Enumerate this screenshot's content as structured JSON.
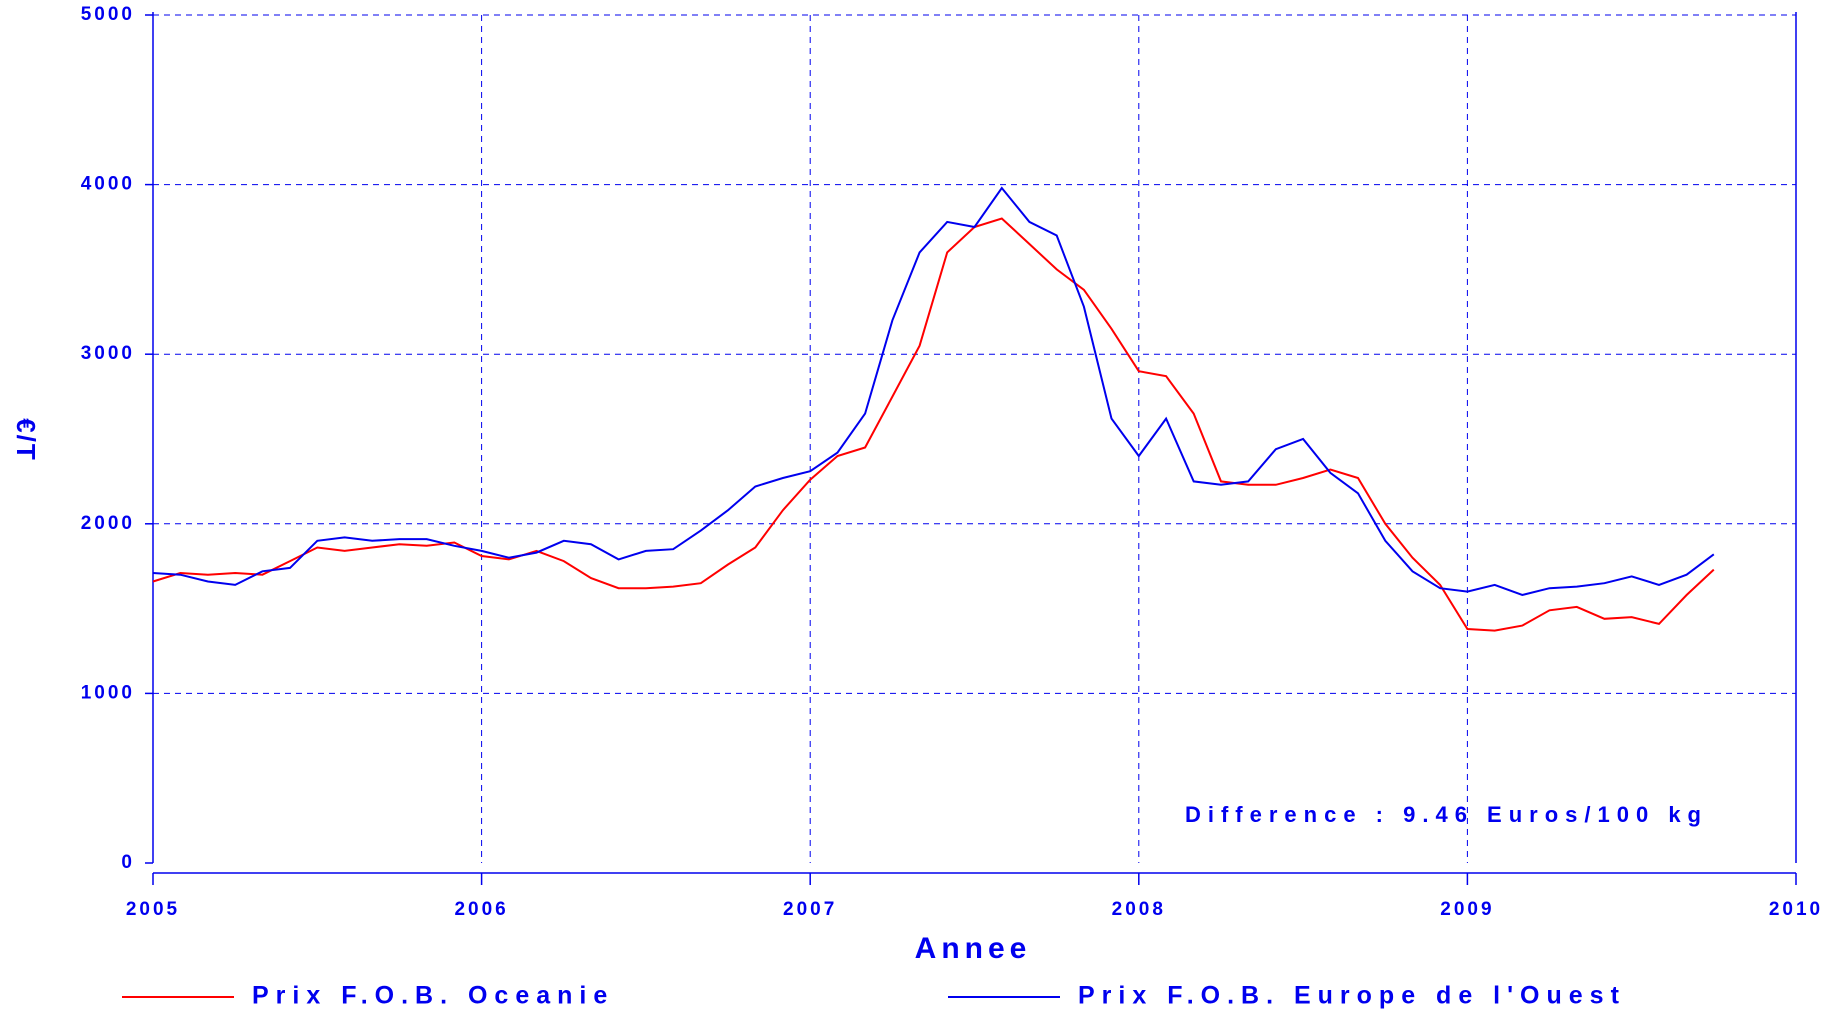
{
  "chart_data": {
    "type": "line",
    "xlabel": "Annee",
    "ylabel": "€/T",
    "annotation": "Difference : 9.46 Euros/100 kg",
    "x": [
      2005,
      2005.083,
      2005.167,
      2005.25,
      2005.333,
      2005.417,
      2005.5,
      2005.583,
      2005.667,
      2005.75,
      2005.833,
      2005.917,
      2006,
      2006.083,
      2006.167,
      2006.25,
      2006.333,
      2006.417,
      2006.5,
      2006.583,
      2006.667,
      2006.75,
      2006.833,
      2006.917,
      2007,
      2007.083,
      2007.167,
      2007.25,
      2007.333,
      2007.417,
      2007.5,
      2007.583,
      2007.667,
      2007.75,
      2007.833,
      2007.917,
      2008,
      2008.083,
      2008.167,
      2008.25,
      2008.333,
      2008.417,
      2008.5,
      2008.583,
      2008.667,
      2008.75,
      2008.833,
      2008.917,
      2009,
      2009.083,
      2009.167,
      2009.25,
      2009.333,
      2009.417,
      2009.5,
      2009.583,
      2009.667,
      2009.75
    ],
    "series": [
      {
        "name": "Prix F.O.B. Oceanie",
        "color": "#ff0000",
        "values": [
          1660,
          1710,
          1700,
          1710,
          1700,
          1780,
          1860,
          1840,
          1860,
          1880,
          1870,
          1890,
          1810,
          1790,
          1840,
          1780,
          1680,
          1620,
          1620,
          1630,
          1650,
          1760,
          1860,
          2080,
          2260,
          2400,
          2450,
          2750,
          3050,
          3600,
          3750,
          3800,
          3650,
          3500,
          3380,
          3150,
          2900,
          2870,
          2650,
          2250,
          2230,
          2230,
          2270,
          2320,
          2270,
          2000,
          1800,
          1640,
          1380,
          1370,
          1400,
          1490,
          1510,
          1440,
          1450,
          1410,
          1580,
          1730
        ]
      },
      {
        "name": "Prix F.O.B. Europe de l'Ouest",
        "color": "#0000ee",
        "values": [
          1710,
          1700,
          1660,
          1640,
          1720,
          1740,
          1900,
          1920,
          1900,
          1910,
          1910,
          1870,
          1840,
          1800,
          1830,
          1900,
          1880,
          1790,
          1840,
          1850,
          1960,
          2080,
          2220,
          2270,
          2310,
          2420,
          2650,
          3200,
          3600,
          3780,
          3750,
          3980,
          3780,
          3700,
          3280,
          2620,
          2400,
          2620,
          2250,
          2230,
          2250,
          2440,
          2500,
          2300,
          2180,
          1900,
          1720,
          1620,
          1600,
          1640,
          1580,
          1620,
          1630,
          1650,
          1690,
          1640,
          1700,
          1820
        ]
      }
    ],
    "xlim": [
      2005,
      2010
    ],
    "xticks": [
      2005,
      2006,
      2007,
      2008,
      2009,
      2010
    ],
    "ylim": [
      0,
      5000
    ],
    "yticks": [
      0,
      1000,
      2000,
      3000,
      4000,
      5000
    ],
    "grid": true
  }
}
